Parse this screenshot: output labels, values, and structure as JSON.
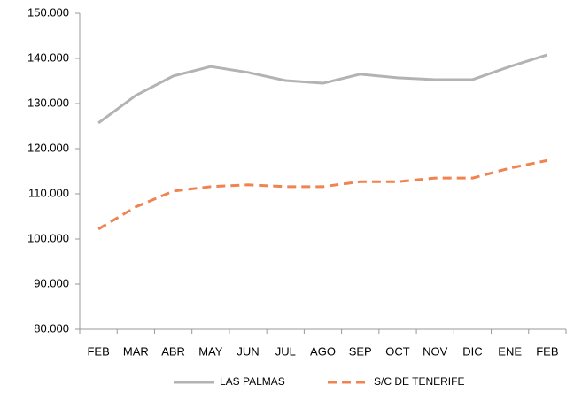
{
  "chart_data": {
    "type": "line",
    "categories": [
      "FEB",
      "MAR",
      "ABR",
      "MAY",
      "JUN",
      "JUL",
      "AGO",
      "SEP",
      "OCT",
      "NOV",
      "DIC",
      "ENE",
      "FEB"
    ],
    "series": [
      {
        "name": "LAS PALMAS",
        "color": "#b3b3b3",
        "style": "solid",
        "values": [
          125700,
          131800,
          136100,
          138200,
          136900,
          135100,
          134500,
          136500,
          135700,
          135300,
          135300,
          138200,
          140800
        ]
      },
      {
        "name": "S/C DE TENERIFE",
        "color": "#f0834f",
        "style": "dashed",
        "values": [
          102200,
          107100,
          110600,
          111600,
          112000,
          111600,
          111600,
          112700,
          112700,
          113500,
          113500,
          115700,
          117400
        ]
      }
    ],
    "ylim": [
      80000,
      150000
    ],
    "yticks": [
      {
        "value": 80000,
        "label": "80.000"
      },
      {
        "value": 90000,
        "label": "90.000"
      },
      {
        "value": 100000,
        "label": "100.000"
      },
      {
        "value": 110000,
        "label": "110.000"
      },
      {
        "value": 120000,
        "label": "120.000"
      },
      {
        "value": 130000,
        "label": "130.000"
      },
      {
        "value": 140000,
        "label": "140.000"
      },
      {
        "value": 150000,
        "label": "150.000"
      }
    ],
    "grid": false,
    "legend": "bottom"
  }
}
